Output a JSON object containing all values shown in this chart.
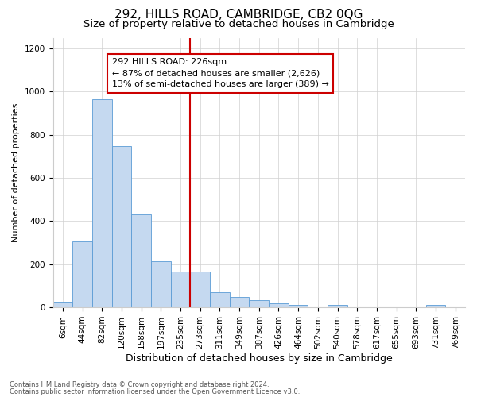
{
  "title": "292, HILLS ROAD, CAMBRIDGE, CB2 0QG",
  "subtitle": "Size of property relative to detached houses in Cambridge",
  "xlabel": "Distribution of detached houses by size in Cambridge",
  "ylabel": "Number of detached properties",
  "footnote1": "Contains HM Land Registry data © Crown copyright and database right 2024.",
  "footnote2": "Contains public sector information licensed under the Open Government Licence v3.0.",
  "bar_labels": [
    "6sqm",
    "44sqm",
    "82sqm",
    "120sqm",
    "158sqm",
    "197sqm",
    "235sqm",
    "273sqm",
    "311sqm",
    "349sqm",
    "387sqm",
    "426sqm",
    "464sqm",
    "502sqm",
    "540sqm",
    "578sqm",
    "617sqm",
    "655sqm",
    "693sqm",
    "731sqm",
    "769sqm"
  ],
  "bar_values": [
    25,
    305,
    965,
    748,
    430,
    213,
    165,
    165,
    70,
    48,
    33,
    20,
    12,
    0,
    12,
    0,
    0,
    0,
    0,
    12,
    0
  ],
  "bar_color": "#c5d9f0",
  "bar_edge_color": "#5b9bd5",
  "vline_pos": 6.5,
  "vline_color": "#cc0000",
  "ylim": [
    0,
    1250
  ],
  "yticks": [
    0,
    200,
    400,
    600,
    800,
    1000,
    1200
  ],
  "ann_line1": "292 HILLS ROAD: 226sqm",
  "ann_line2": "← 87% of detached houses are smaller (2,626)",
  "ann_line3": "13% of semi-detached houses are larger (389) →",
  "ann_box_color": "#cc0000",
  "title_fontsize": 11,
  "subtitle_fontsize": 9.5,
  "xlabel_fontsize": 9,
  "ylabel_fontsize": 8,
  "ann_fontsize": 8,
  "tick_fontsize": 7.5,
  "footnote_fontsize": 6
}
